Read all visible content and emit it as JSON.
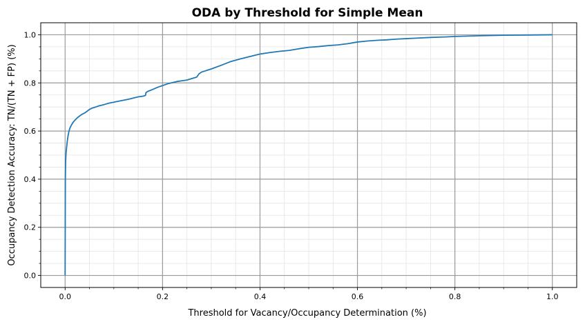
{
  "chart_data": {
    "type": "line",
    "title": "ODA by Threshold for Simple Mean",
    "xlabel": "Threshold for Vacancy/Occupancy Determination (%)",
    "ylabel": "Occupancy Detection Accuracy: TN/(TN + FP) (%)",
    "xlim": [
      -0.05,
      1.05
    ],
    "ylim": [
      -0.05,
      1.05
    ],
    "x_ticks": [
      0.0,
      0.2,
      0.4,
      0.6,
      0.8,
      1.0
    ],
    "y_ticks": [
      0.0,
      0.2,
      0.4,
      0.6,
      0.8,
      1.0
    ],
    "x_tick_labels": [
      "0.0",
      "0.2",
      "0.4",
      "0.6",
      "0.8",
      "1.0"
    ],
    "y_tick_labels": [
      "0.0",
      "0.2",
      "0.4",
      "0.6",
      "0.8",
      "1.0"
    ],
    "grid": "major and minor",
    "legend": "none",
    "line_color": "#1f77b4",
    "major_grid_color": "#999999",
    "minor_grid_color": "#e3e3e3",
    "series": [
      {
        "x": [
          0.0,
          0.0005,
          0.001,
          0.002,
          0.004,
          0.006,
          0.008,
          0.01,
          0.013,
          0.016,
          0.02,
          0.025,
          0.03,
          0.035,
          0.04,
          0.045,
          0.05,
          0.055,
          0.06,
          0.07,
          0.08,
          0.09,
          0.1,
          0.11,
          0.12,
          0.13,
          0.14,
          0.15,
          0.16,
          0.165,
          0.166,
          0.17,
          0.18,
          0.19,
          0.2,
          0.21,
          0.22,
          0.23,
          0.24,
          0.25,
          0.26,
          0.27,
          0.275,
          0.28,
          0.3,
          0.32,
          0.34,
          0.36,
          0.38,
          0.4,
          0.42,
          0.44,
          0.46,
          0.48,
          0.5,
          0.52,
          0.54,
          0.56,
          0.58,
          0.6,
          0.62,
          0.64,
          0.66,
          0.68,
          0.7,
          0.72,
          0.75,
          0.78,
          0.8,
          0.85,
          0.9,
          0.95,
          1.0
        ],
        "y": [
          0.0,
          0.4,
          0.47,
          0.51,
          0.55,
          0.58,
          0.6,
          0.613,
          0.625,
          0.635,
          0.645,
          0.655,
          0.663,
          0.67,
          0.675,
          0.682,
          0.69,
          0.695,
          0.698,
          0.705,
          0.71,
          0.716,
          0.72,
          0.724,
          0.728,
          0.732,
          0.737,
          0.742,
          0.745,
          0.748,
          0.76,
          0.765,
          0.773,
          0.782,
          0.789,
          0.796,
          0.801,
          0.806,
          0.809,
          0.812,
          0.818,
          0.824,
          0.838,
          0.845,
          0.858,
          0.873,
          0.889,
          0.9,
          0.91,
          0.92,
          0.926,
          0.931,
          0.935,
          0.942,
          0.948,
          0.951,
          0.955,
          0.958,
          0.963,
          0.97,
          0.974,
          0.977,
          0.979,
          0.982,
          0.984,
          0.986,
          0.989,
          0.991,
          0.993,
          0.996,
          0.998,
          0.999,
          1.0
        ]
      }
    ]
  }
}
